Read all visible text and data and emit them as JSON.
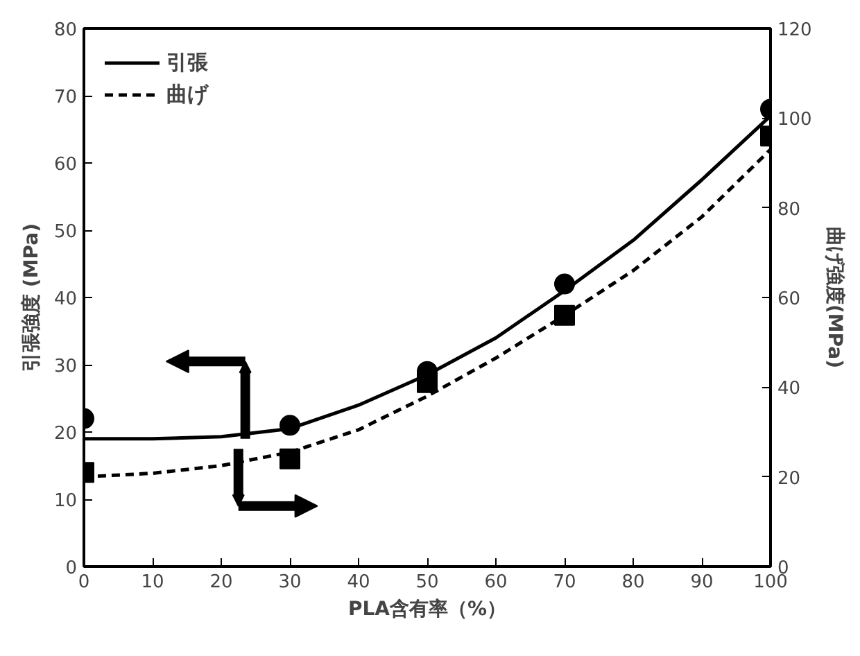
{
  "chart_data": {
    "type": "line",
    "xlabel": "PLA含有率（%）",
    "ylabel": "引張強度 (MPa)",
    "y2label": "曲げ強度(MPa)",
    "xlim": [
      0,
      100
    ],
    "xticks": [
      0,
      10,
      20,
      30,
      40,
      50,
      60,
      70,
      80,
      90,
      100
    ],
    "ylim": [
      0,
      80
    ],
    "yticks": [
      0,
      10,
      20,
      30,
      40,
      50,
      60,
      70,
      80
    ],
    "y2lim": [
      0,
      120
    ],
    "y2ticks": [
      0,
      20,
      40,
      60,
      80,
      100,
      120
    ],
    "grid": false,
    "legend": "top left",
    "series": [
      {
        "name": "引張",
        "color": "#000000",
        "line_style": "solid",
        "marker": "none",
        "x": [
          0,
          10,
          20,
          30,
          40,
          50,
          60,
          70,
          80,
          90,
          100
        ],
        "values": [
          19,
          19,
          19.3,
          20.5,
          24,
          28.5,
          34,
          41,
          48.5,
          57.5,
          67
        ]
      },
      {
        "name": "曲げ",
        "axis": "y2",
        "color": "#000000",
        "line_style": "dashed",
        "marker": "none",
        "x": [
          0,
          10,
          20,
          30,
          40,
          50,
          60,
          70,
          80,
          90,
          100
        ],
        "values": [
          20,
          20.8,
          22.5,
          25.5,
          30.5,
          38,
          46.5,
          56,
          66,
          78,
          93
        ]
      },
      {
        "type": "scatter",
        "color": "#000000",
        "marker": "circle",
        "x": [
          0,
          30,
          50,
          70,
          100
        ],
        "values": [
          22,
          21,
          29,
          42,
          68
        ]
      },
      {
        "type": "scatter",
        "axis": "y2",
        "color": "#000000",
        "marker": "square",
        "x": [
          0,
          30,
          50,
          70,
          100
        ],
        "values": [
          21,
          24,
          41,
          56,
          96
        ]
      }
    ]
  }
}
